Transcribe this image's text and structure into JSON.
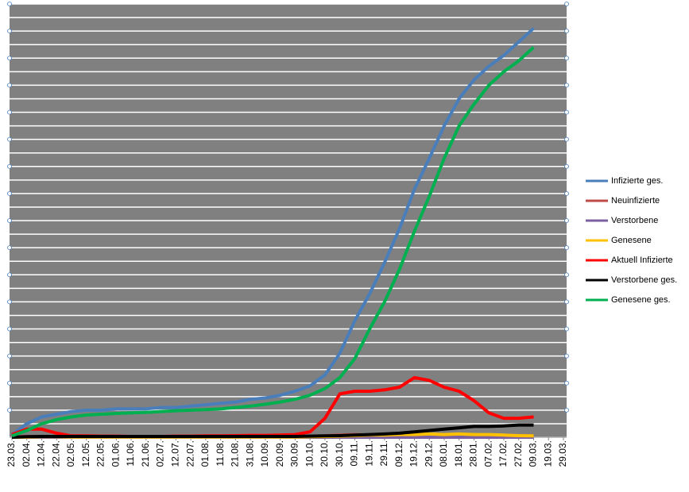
{
  "chart_data": {
    "type": "line",
    "categories": [
      "23.03.",
      "02.04.",
      "12.04.",
      "22.04.",
      "02.05.",
      "12.05.",
      "22.05.",
      "01.06.",
      "11.06.",
      "21.06.",
      "02.07.",
      "12.07.",
      "22.07.",
      "01.08.",
      "11.08.",
      "21.08.",
      "31.08.",
      "10.09.",
      "20.09.",
      "30.09.",
      "10.10.",
      "20.10.",
      "30.10.",
      "09.11.",
      "19.11.",
      "29.11.",
      "09.12.",
      "19.12.",
      "29.12.",
      "08.01.",
      "18.01.",
      "28.01.",
      "07.02.",
      "17.02.",
      "27.02.",
      "09.03.",
      "19.03.",
      "29.03."
    ],
    "ylim": [
      0,
      16
    ],
    "grid": true,
    "legend": "right",
    "series": [
      {
        "name": "Infizierte ges.",
        "color": "#4a7ebb",
        "values": [
          0.1,
          0.5,
          0.75,
          0.85,
          0.95,
          1.0,
          1.0,
          1.05,
          1.05,
          1.05,
          1.1,
          1.1,
          1.15,
          1.2,
          1.25,
          1.3,
          1.4,
          1.45,
          1.55,
          1.7,
          1.9,
          2.3,
          3.1,
          4.3,
          5.3,
          6.45,
          7.7,
          9.15,
          10.3,
          11.5,
          12.5,
          13.2,
          13.7,
          14.1,
          14.6,
          15.1,
          null,
          null
        ]
      },
      {
        "name": "Neuinfizierte",
        "color": "#be4b48",
        "values": [
          0.02,
          0.03,
          0.02,
          0.01,
          0.01,
          0.01,
          0.01,
          0.01,
          0.01,
          0.01,
          0.01,
          0.01,
          0.01,
          0.01,
          0.01,
          0.01,
          0.01,
          0.01,
          0.02,
          0.02,
          0.03,
          0.05,
          0.08,
          0.1,
          0.08,
          0.08,
          0.09,
          0.09,
          0.08,
          0.07,
          0.06,
          0.05,
          0.05,
          0.04,
          0.05,
          0.05,
          null,
          null
        ]
      },
      {
        "name": "Verstorbene",
        "color": "#7d60a0",
        "values": [
          0,
          0,
          0,
          0,
          0,
          0,
          0,
          0,
          0,
          0,
          0,
          0,
          0,
          0,
          0,
          0,
          0,
          0,
          0,
          0,
          0,
          0,
          0,
          0,
          0,
          0,
          0,
          0,
          0,
          0,
          0,
          0,
          0,
          0,
          0,
          0,
          null,
          null
        ]
      },
      {
        "name": "Genesene",
        "color": "#ffc000",
        "values": [
          0,
          0.01,
          0.02,
          0.02,
          0.01,
          0.01,
          0.01,
          0.01,
          0.01,
          0.01,
          0.01,
          0.01,
          0.01,
          0.01,
          0.01,
          0.01,
          0.01,
          0.01,
          0.01,
          0.01,
          0.02,
          0.03,
          0.04,
          0.06,
          0.08,
          0.08,
          0.1,
          0.1,
          0.12,
          0.1,
          0.12,
          0.1,
          0.1,
          0.08,
          0.06,
          0.05,
          null,
          null
        ]
      },
      {
        "name": "Aktuell Infizierte",
        "color": "#ff0000",
        "values": [
          0.1,
          0.3,
          0.3,
          0.15,
          0.05,
          0.05,
          0.04,
          0.04,
          0.03,
          0.03,
          0.03,
          0.04,
          0.04,
          0.05,
          0.05,
          0.06,
          0.07,
          0.07,
          0.08,
          0.1,
          0.2,
          0.7,
          1.6,
          1.7,
          1.7,
          1.75,
          1.85,
          2.2,
          2.1,
          1.85,
          1.7,
          1.35,
          0.9,
          0.7,
          0.7,
          0.75,
          null,
          null
        ]
      },
      {
        "name": "Verstorbene ges.",
        "color": "#000000",
        "values": [
          0,
          0.02,
          0.03,
          0.03,
          0.03,
          0.03,
          0.03,
          0.03,
          0.03,
          0.03,
          0.03,
          0.03,
          0.03,
          0.03,
          0.03,
          0.03,
          0.03,
          0.03,
          0.03,
          0.03,
          0.04,
          0.05,
          0.06,
          0.08,
          0.1,
          0.12,
          0.15,
          0.2,
          0.25,
          0.3,
          0.35,
          0.4,
          0.4,
          0.42,
          0.45,
          0.45,
          null,
          null
        ]
      },
      {
        "name": "Genesene ges.",
        "color": "#00b050",
        "values": [
          0.05,
          0.25,
          0.5,
          0.65,
          0.75,
          0.82,
          0.85,
          0.88,
          0.9,
          0.92,
          0.95,
          0.98,
          1.0,
          1.02,
          1.05,
          1.1,
          1.15,
          1.22,
          1.3,
          1.4,
          1.55,
          1.8,
          2.2,
          2.9,
          4.0,
          5.0,
          6.2,
          7.6,
          8.9,
          10.3,
          11.5,
          12.3,
          13.0,
          13.5,
          13.9,
          14.4,
          null,
          null
        ]
      }
    ]
  }
}
